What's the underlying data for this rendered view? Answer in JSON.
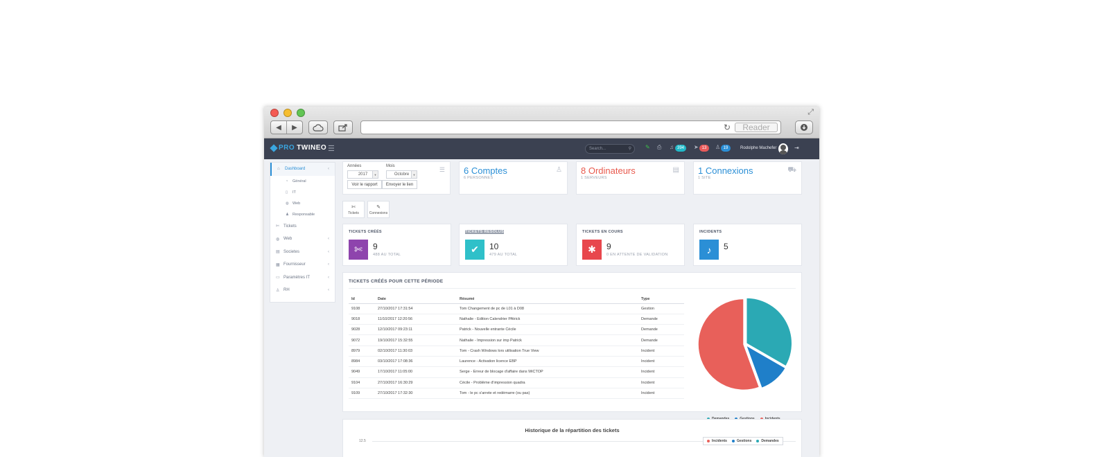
{
  "browser": {
    "reader_label": "Reader",
    "back_icon": "◀",
    "forward_icon": "▶"
  },
  "app": {
    "logo_pro": "PRO",
    "logo_twineo": "TWINEO",
    "search_placeholder": "Search...",
    "badges": [
      {
        "value": "394",
        "color": "#21b9c8"
      },
      {
        "value": "13",
        "color": "#e85a5a"
      },
      {
        "value": "19",
        "color": "#2b8fd6"
      }
    ],
    "username": "Rodolphe Machefer"
  },
  "sidebar": {
    "items": [
      {
        "label": "Dashboard"
      },
      {
        "label": "Tickets"
      },
      {
        "label": "Web"
      },
      {
        "label": "Societes"
      },
      {
        "label": "Fournisseur"
      },
      {
        "label": "Paramètres IT"
      },
      {
        "label": "RH"
      }
    ],
    "subitems": [
      {
        "label": "Général"
      },
      {
        "label": "IT"
      },
      {
        "label": "Web"
      },
      {
        "label": "Responsable"
      }
    ]
  },
  "filters": {
    "annees_label": "Années",
    "annees_value": "2017",
    "mois_label": "Mois",
    "mois_value": "Octobre",
    "voir_rapport": "Voir le rapport",
    "envoyer_lien": "Envoyer le lien"
  },
  "stats": [
    {
      "title": "6 Comptes",
      "sub": "6 PERSONNES",
      "color": "#2b8fd6"
    },
    {
      "title": "8 Ordinateurs",
      "sub": "1 SERVEURS",
      "color": "#e8594d"
    },
    {
      "title": "1 Connexions",
      "sub": "1 SITE",
      "color": "#2b8fd6"
    }
  ],
  "shortcuts": [
    {
      "label": "Tickets"
    },
    {
      "label": "Connexions"
    }
  ],
  "kpis": [
    {
      "title": "TICKETS CRÉÉS",
      "value": "9",
      "sub": "488 AU TOTAL",
      "color": "#8e44ad"
    },
    {
      "title": "TICKETS RÉSOLUS",
      "value": "10",
      "sub": "479 AU TOTAL",
      "color": "#2fc0c9"
    },
    {
      "title": "TICKETS EN COURS",
      "value": "9",
      "sub": "0 EN ATTENTE DE VALIDATION",
      "color": "#e8474d"
    },
    {
      "title": "INCIDENTS",
      "value": "5",
      "sub": "",
      "color": "#2b8fd6"
    }
  ],
  "tickets": {
    "title": "TICKETS CRÉÉS POUR CETTE PÉRIODE",
    "headers": {
      "id": "Id",
      "date": "Date",
      "resume": "Résumé",
      "type": "Type"
    },
    "rows": [
      {
        "id": "9108",
        "date": "27/10/2017 17:31:54",
        "resume": "Tom Changement de pc de L01 à D08",
        "type": "Gestion"
      },
      {
        "id": "9018",
        "date": "11/10/2017 12:20:56",
        "resume": "Nathalie - Edition Calendrier PAtrick",
        "type": "Demande"
      },
      {
        "id": "9028",
        "date": "12/10/2017 09:23:11",
        "resume": "Patrick - Nouvelle entrante Cécile",
        "type": "Demande"
      },
      {
        "id": "9072",
        "date": "19/10/2017 15:32:55",
        "resume": "Nathalie - Impression sur imp Patrick",
        "type": "Demande"
      },
      {
        "id": "8979",
        "date": "02/10/2017 11:30:03",
        "resume": "Tom - Crash Windows lors utilisation True View",
        "type": "Incident"
      },
      {
        "id": "8984",
        "date": "03/10/2017 17:08:36",
        "resume": "Laurence - Activation licence EBP",
        "type": "Incident"
      },
      {
        "id": "9049",
        "date": "17/10/2017 11:05:00",
        "resume": "Serge - Erreur de blocage d'affaire dans WiCTOP",
        "type": "Incident"
      },
      {
        "id": "9104",
        "date": "27/10/2017 16:30:29",
        "resume": "Cécile - Problème d'impression quadra",
        "type": "Incident"
      },
      {
        "id": "9109",
        "date": "27/10/2017 17:32:30",
        "resume": "Tom - le pc s'arrete et redémarre (ou pas)",
        "type": "Incident"
      }
    ]
  },
  "chart_data": {
    "type": "pie",
    "categories": [
      "Demandes",
      "Gestions",
      "Incidents"
    ],
    "values": [
      3,
      1,
      5
    ],
    "colors": [
      "#2ba9b4",
      "#1f7fc9",
      "#e8605a"
    ]
  },
  "history": {
    "title": "Historique de la répartition des tickets",
    "ytick": "12.5",
    "legend": [
      {
        "label": "Incidents",
        "color": "#e8605a"
      },
      {
        "label": "Gestions",
        "color": "#1f7fc9"
      },
      {
        "label": "Demandes",
        "color": "#2ba9b4"
      }
    ]
  }
}
